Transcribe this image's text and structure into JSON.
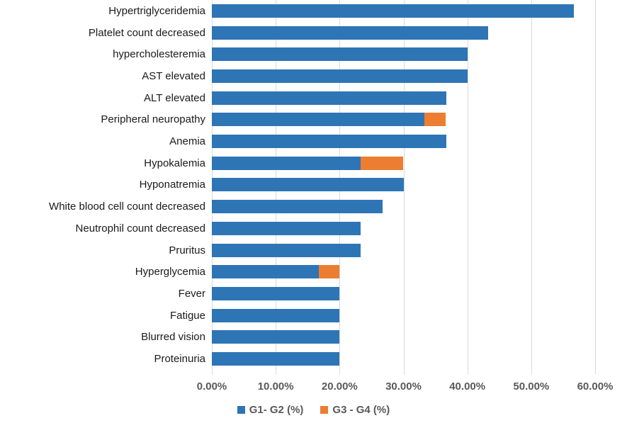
{
  "chart_data": {
    "type": "bar",
    "orientation": "horizontal",
    "stacked": true,
    "title": "",
    "xlabel": "",
    "ylabel": "",
    "categories": [
      "Hypertriglyceridemia",
      "Platelet count decreased",
      "hypercholesteremia",
      "AST elevated",
      "ALT elevated",
      "Peripheral neuropathy",
      "Anemia",
      "Hypokalemia",
      "Hyponatremia",
      "White blood cell count decreased",
      "Neutrophil count decreased",
      "Pruritus",
      "Hyperglycemia",
      "Fever",
      "Fatigue",
      "Blurred vision",
      "Proteinuria"
    ],
    "series": [
      {
        "name": "G1- G2 (%)",
        "color": "#2E75B6",
        "values": [
          56.7,
          43.3,
          40.0,
          40.0,
          36.7,
          33.3,
          36.7,
          23.3,
          30.0,
          26.7,
          23.3,
          23.3,
          16.7,
          20.0,
          20.0,
          20.0,
          20.0
        ]
      },
      {
        "name": "G3 - G4 (%)",
        "color": "#ED7D31",
        "values": [
          0,
          0,
          0,
          0,
          0,
          3.3,
          0,
          6.7,
          0,
          0,
          0,
          0,
          3.3,
          0,
          0,
          0,
          0
        ]
      }
    ],
    "x_axis": {
      "min": 0,
      "max": 60,
      "tick_values": [
        0,
        10,
        20,
        30,
        40,
        50,
        60
      ],
      "tick_labels": [
        "0.00%",
        "10.00%",
        "20.00%",
        "30.00%",
        "40.00%",
        "50.00%",
        "60.00%"
      ]
    },
    "legend": {
      "position": "bottom",
      "items": [
        {
          "label": "G1- G2 (%)",
          "color": "#2E75B6"
        },
        {
          "label": "G3 - G4 (%)",
          "color": "#ED7D31"
        }
      ]
    },
    "grid": true,
    "gridline_color": "#D9D9D9",
    "axis_text_color": "#595959",
    "category_text_color": "#1A1A1A"
  }
}
